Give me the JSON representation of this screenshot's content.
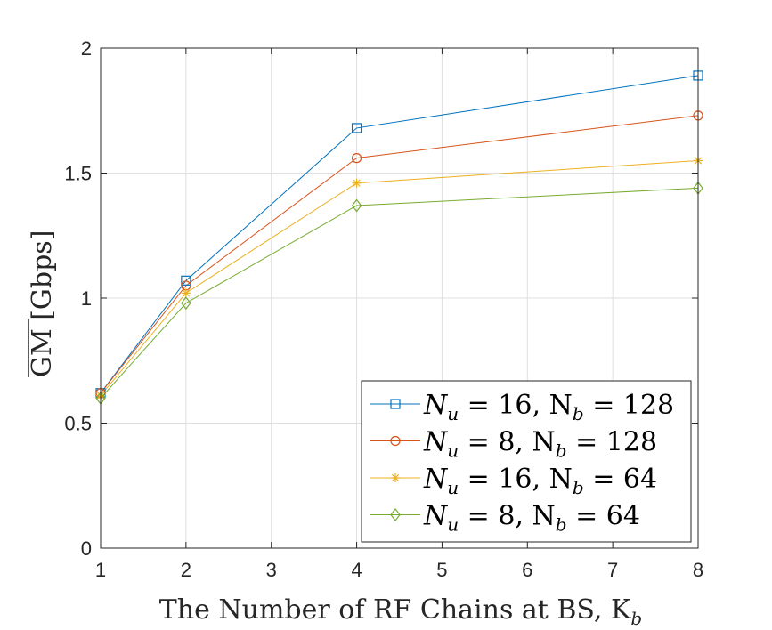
{
  "chart_data": {
    "type": "line",
    "title": "",
    "xlabel": "The Number of RF Chains at BS, K",
    "xlabel_sub": "b",
    "ylabel": "GM [Gbps]",
    "x": [
      1,
      2,
      4,
      8
    ],
    "xlim": [
      1,
      8
    ],
    "ylim": [
      0,
      2
    ],
    "xticks": [
      "1",
      "2",
      "3",
      "4",
      "5",
      "6",
      "7",
      "8"
    ],
    "yticks": [
      "0",
      "0.5",
      "1",
      "1.5",
      "2"
    ],
    "grid": true,
    "legend_position": "bottom-right",
    "series": [
      {
        "name": "N_u = 16, N_b = 128",
        "values": [
          0.62,
          1.07,
          1.68,
          1.89
        ],
        "color": "#0072BD",
        "marker": "square"
      },
      {
        "name": "N_u = 8, N_b = 128",
        "values": [
          0.62,
          1.05,
          1.56,
          1.73
        ],
        "color": "#D95319",
        "marker": "circle"
      },
      {
        "name": "N_u = 16, N_b = 64",
        "values": [
          0.61,
          1.02,
          1.46,
          1.55
        ],
        "color": "#EDB120",
        "marker": "star"
      },
      {
        "name": "N_u = 8, N_b = 64",
        "values": [
          0.6,
          0.98,
          1.37,
          1.44
        ],
        "color": "#77AC30",
        "marker": "diamond"
      }
    ],
    "legend": [
      {
        "nu": "16",
        "nb": "128"
      },
      {
        "nu": "8",
        "nb": "128"
      },
      {
        "nu": "16",
        "nb": "64"
      },
      {
        "nu": "8",
        "nb": "64"
      }
    ]
  }
}
